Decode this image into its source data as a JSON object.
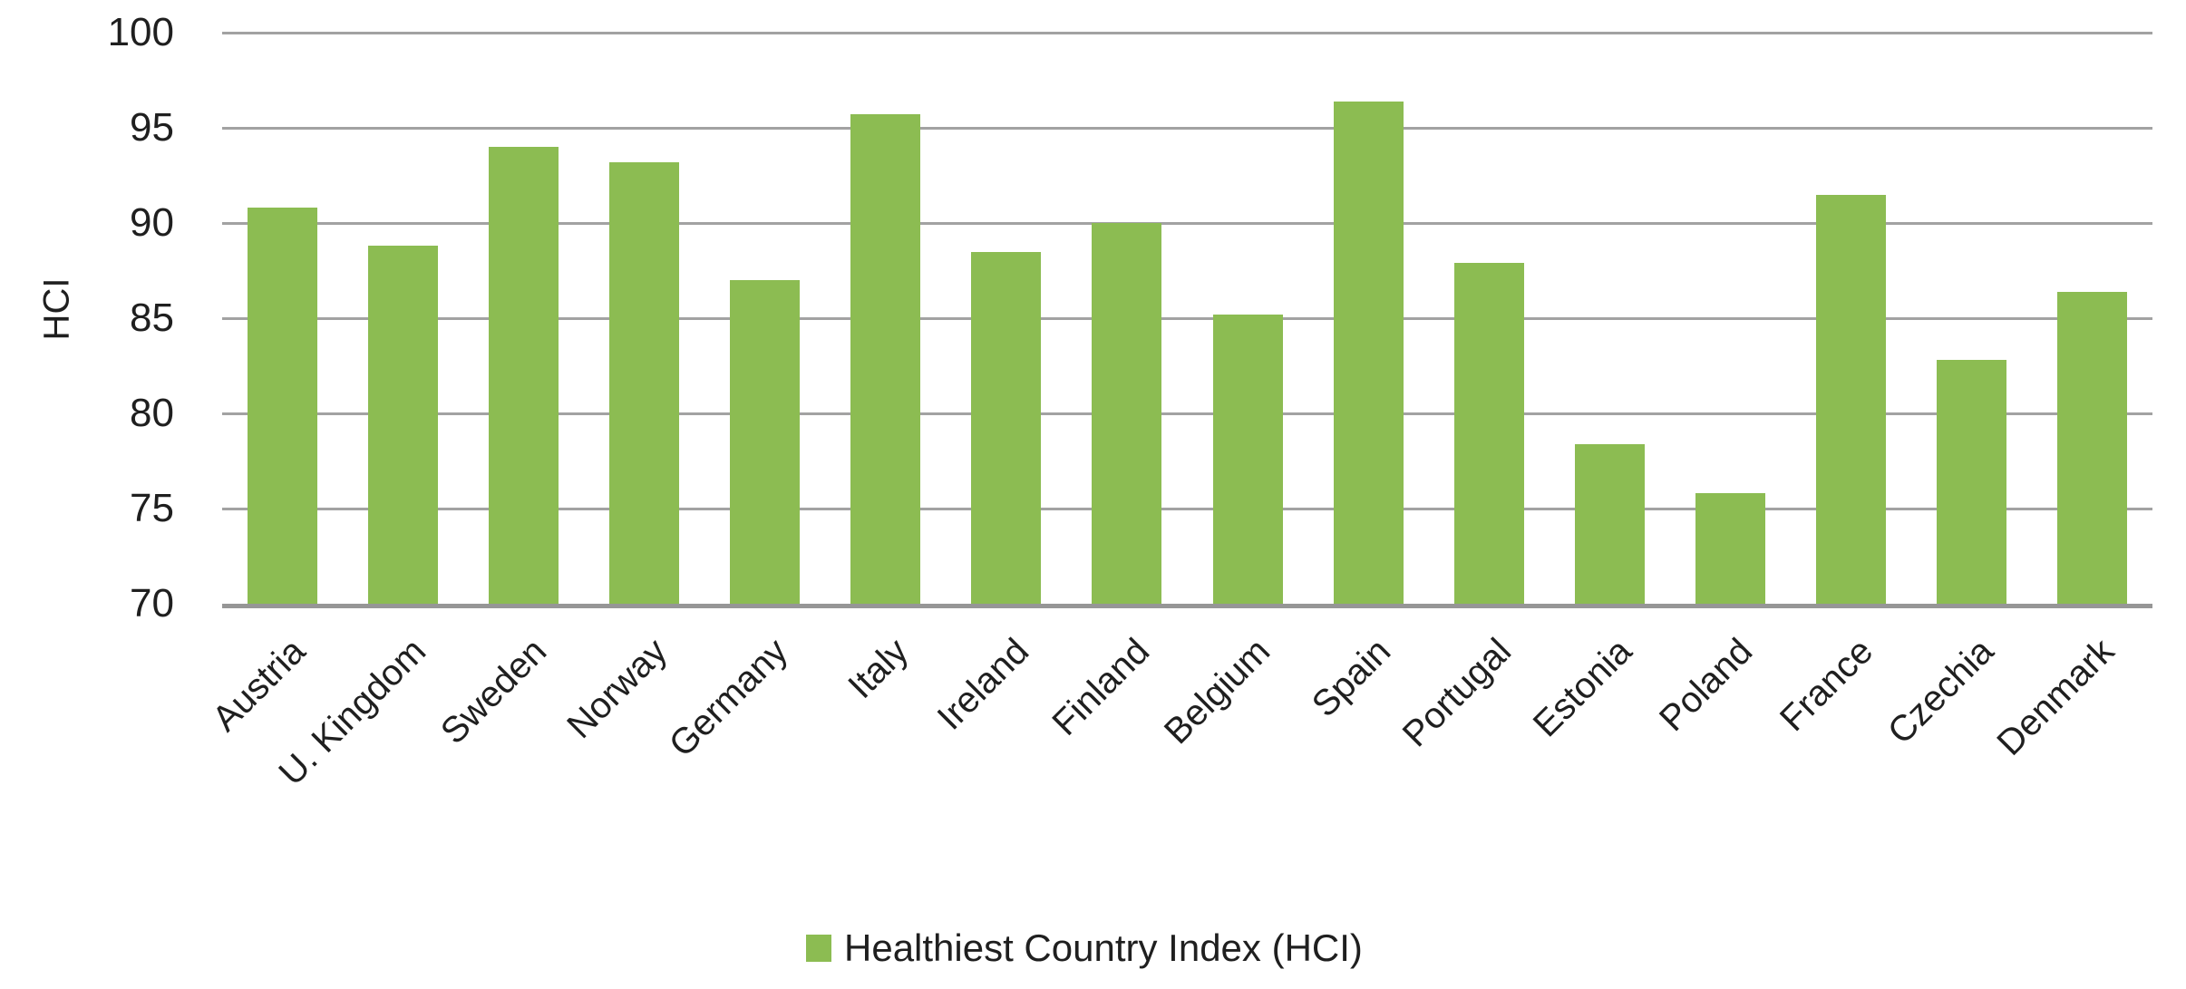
{
  "chart_data": {
    "type": "bar",
    "title": "",
    "categories": [
      "Austria",
      "U. Kingdom",
      "Sweden",
      "Norway",
      "Germany",
      "Italy",
      "Ireland",
      "Finland",
      "Belgium",
      "Spain",
      "Portugal",
      "Estonia",
      "Poland",
      "France",
      "Czechia",
      "Denmark"
    ],
    "values": [
      90.8,
      88.8,
      94.0,
      93.2,
      87.0,
      95.7,
      88.5,
      90.0,
      85.2,
      96.4,
      87.9,
      78.4,
      75.8,
      91.5,
      82.8,
      86.4
    ],
    "series": [
      {
        "name": "Healthiest Country Index (HCI)",
        "values": [
          90.8,
          88.8,
          94.0,
          93.2,
          87.0,
          95.7,
          88.5,
          90.0,
          85.2,
          96.4,
          87.9,
          78.4,
          75.8,
          91.5,
          82.8,
          86.4
        ]
      }
    ],
    "xlabel": "",
    "ylabel": "HCI",
    "ylim": [
      70,
      100
    ],
    "yticks": [
      70,
      75,
      80,
      85,
      90,
      95,
      100
    ],
    "grid": true,
    "legend_position": "bottom",
    "legend_label": "Healthiest Country Index (HCI)",
    "colors": {
      "bar": "#8CBC52",
      "gridline": "#A2A2A2",
      "axis_line": "#969696",
      "text": "#1f1f1f"
    }
  }
}
